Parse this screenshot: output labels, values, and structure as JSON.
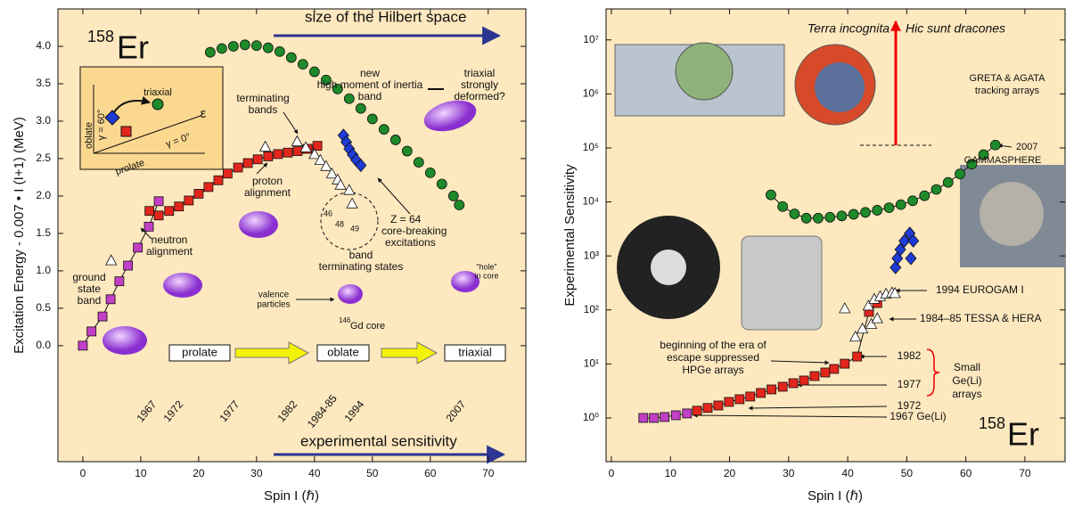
{
  "chart_data": [
    {
      "type": "scatter",
      "x_label": "Spin I (ℏ)",
      "y_label": "Excitation Energy - 0.007 • I (I+1) (MeV)",
      "xlim": [
        -4.3,
        76.5
      ],
      "ylim": [
        -1.55,
        4.5
      ],
      "xticks": [
        0,
        10,
        20,
        30,
        40,
        50,
        60,
        70
      ],
      "yticks": [
        {
          "value": 0,
          "label": "0.0"
        },
        0.5,
        {
          "value": 1,
          "label": "1.0"
        },
        1.5,
        {
          "value": 2,
          "label": "2.0"
        },
        2.5,
        {
          "value": 3,
          "label": "3.0"
        },
        3.5,
        {
          "value": 4,
          "label": "4.0"
        }
      ],
      "series": [
        {
          "marker": "square",
          "color": "#c23fc6",
          "line": true,
          "x": [
            0,
            1.5,
            3.4,
            4.8,
            6.3,
            7.8,
            9.5,
            11.4,
            13.1
          ],
          "values": [
            0,
            0.19,
            0.39,
            0.62,
            0.86,
            1.07,
            1.31,
            1.59,
            1.93
          ]
        },
        {
          "marker": "square",
          "color": "#e3261c",
          "line": true,
          "x": [
            11.5,
            13.1,
            14.9,
            16.6,
            18.3,
            20,
            21.7,
            23.4,
            25,
            26.8,
            28.5,
            30.2,
            32,
            33.7,
            35.4,
            37.1,
            38.8,
            40.5
          ],
          "values": [
            1.8,
            1.74,
            1.8,
            1.86,
            1.94,
            2.03,
            2.12,
            2.21,
            2.3,
            2.38,
            2.44,
            2.49,
            2.53,
            2.56,
            2.58,
            2.6,
            2.63,
            2.67
          ]
        },
        {
          "marker": "diamond",
          "color": "#1f3bd6",
          "line": false,
          "x": [
            45,
            45.5,
            46,
            46.6,
            47.2,
            48
          ],
          "values": [
            2.81,
            2.72,
            2.63,
            2.55,
            2.48,
            2.41
          ]
        },
        {
          "marker": "circle",
          "color": "#1e8a2a",
          "line": false,
          "x": [
            22,
            24,
            26,
            28,
            30,
            32,
            34,
            36,
            38,
            40,
            42,
            44,
            46,
            48,
            50,
            52,
            54,
            56,
            58,
            60,
            62,
            64,
            65
          ],
          "values": [
            3.92,
            3.97,
            4.0,
            4.02,
            4.01,
            3.98,
            3.93,
            3.85,
            3.76,
            3.66,
            3.55,
            3.43,
            3.3,
            3.17,
            3.03,
            2.89,
            2.75,
            2.6,
            2.45,
            2.31,
            2.16,
            2.0,
            1.88
          ]
        },
        {
          "marker": "triangle",
          "color": "#ffffff",
          "line": false,
          "x": [
            4.9,
            31.5,
            37,
            38.5,
            40,
            41,
            42,
            43,
            44,
            44.5,
            46,
            46.5
          ],
          "values": [
            1.14,
            2.66,
            2.73,
            2.65,
            2.56,
            2.48,
            2.4,
            2.3,
            2.22,
            2.15,
            2.08,
            1.9
          ]
        }
      ],
      "annotations": [
        "158",
        "Er",
        "size of the Hilbert space",
        "experimental sensitivity",
        "new",
        "high moment of inertia",
        "band",
        "triaxial",
        "strongly",
        "deformed?",
        "terminating",
        "bands",
        "proton",
        "alignment",
        "neutron",
        "alignment",
        "ground",
        "state",
        "band",
        "band",
        "terminating states",
        "valence",
        "particles",
        "146",
        "Gd core",
        "Z = 64",
        "core-breaking",
        "excitations",
        "“hole”",
        "in core",
        "prolate",
        "oblate",
        "triaxial",
        "triaxial",
        "oblate",
        "γ = 60°",
        "prolate",
        "γ = 0°",
        "ε",
        "46",
        "48",
        "49"
      ],
      "year_labels": [
        "1967",
        "1972",
        "1977",
        "1982",
        "1984-85",
        "1994",
        "2007"
      ]
    },
    {
      "type": "scatter",
      "x_label": "Spin I (ℏ)",
      "y_label": "Experimental Sensitivity",
      "log_y": true,
      "xlim": [
        -0.9,
        76.8
      ],
      "ylim": [
        0.155,
        37500000
      ],
      "xticks": [
        0,
        10,
        20,
        30,
        40,
        50,
        60,
        70
      ],
      "yticks": [
        {
          "value": 1,
          "label": "10⁰"
        },
        {
          "value": 10,
          "label": "10¹"
        },
        {
          "value": 100,
          "label": "10²"
        },
        {
          "value": 1000,
          "label": "10³"
        },
        {
          "value": 10000,
          "label": "10⁴"
        },
        {
          "value": 100000,
          "label": "10⁵"
        },
        {
          "value": 1000000,
          "label": "10⁶"
        },
        {
          "value": 10000000,
          "label": "10⁷"
        }
      ],
      "series": [
        {
          "marker": "square",
          "color": "#c23fc6",
          "line": true,
          "x": [
            5.4,
            7.2,
            9,
            10.9,
            12.8
          ],
          "values": [
            1,
            1,
            1.04,
            1.12,
            1.21
          ]
        },
        {
          "marker": "square",
          "color": "#e3261c",
          "line": true,
          "x": [
            14.5,
            16.3,
            18.1,
            19.9,
            21.7,
            23.5,
            25.3,
            27.1,
            29,
            30.8,
            32.6,
            34.4,
            36.2,
            37.7,
            39.5,
            41.6,
            43.6,
            45
          ],
          "values": [
            1.36,
            1.53,
            1.7,
            1.98,
            2.22,
            2.49,
            2.9,
            3.37,
            3.78,
            4.4,
            4.93,
            5.96,
            6.94,
            8.08,
            10.1,
            13.7,
            92,
            134
          ]
        },
        {
          "marker": "triangle",
          "color": "#ffffff",
          "line": false,
          "x": [
            39.5,
            41.3,
            42.5,
            43.5,
            44,
            44.5,
            45,
            45.5,
            46.5,
            47.5,
            48
          ],
          "values": [
            107,
            32,
            45,
            120,
            55,
            160,
            70,
            180,
            200,
            210,
            205
          ]
        },
        {
          "marker": "diamond",
          "color": "#1f3bd6",
          "line": false,
          "x": [
            48.1,
            48.4,
            48.9,
            49.6,
            50.5,
            51.1,
            50.7
          ],
          "values": [
            610,
            900,
            1310,
            1900,
            2620,
            1900,
            900
          ]
        },
        {
          "marker": "circle",
          "color": "#1e8a2a",
          "line": true,
          "x": [
            27,
            29,
            31,
            33,
            35,
            37,
            39,
            41,
            43,
            45,
            47,
            49,
            51,
            53,
            55,
            57,
            59,
            61,
            63,
            65
          ],
          "values": [
            13500,
            8200,
            6000,
            5000,
            5000,
            5200,
            5500,
            5900,
            6400,
            7000,
            7800,
            8900,
            10500,
            13000,
            17000,
            23000,
            33000,
            50000,
            75000,
            113000
          ]
        }
      ],
      "annotations": [
        "Terra incognita",
        "Hic sunt dracones",
        "GRETA & AGATA",
        "tracking arrays",
        "2007",
        "GAMMASPHERE",
        "1994 EUROGAM Ι",
        "1984–85 TESSA & HERA",
        "beginning of the era of",
        "escape suppressed",
        "HPGe arrays",
        "1982",
        "1977",
        "1972",
        "1967 Ge(Li)",
        "Small",
        "Ge(Li)",
        "arrays",
        "158",
        "Er"
      ]
    }
  ]
}
